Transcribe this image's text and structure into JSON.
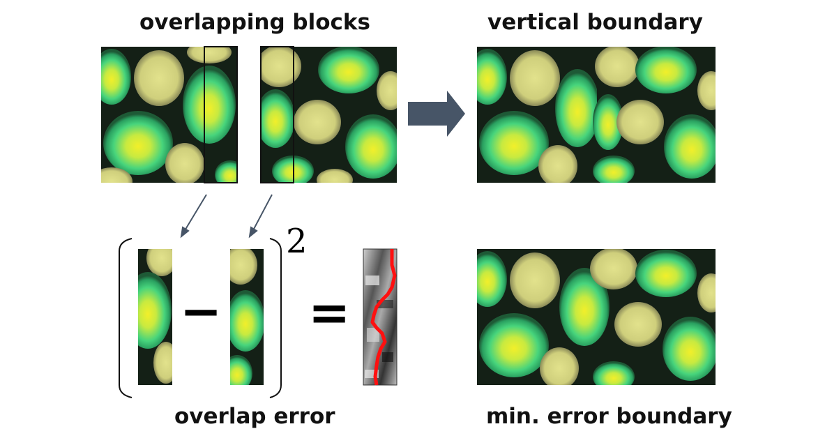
{
  "labels": {
    "overlapping_blocks": "overlapping blocks",
    "vertical_boundary": "vertical boundary",
    "overlap_error": "overlap error",
    "min_error_boundary": "min. error boundary"
  },
  "equation": {
    "minus": "−",
    "equals": "=",
    "exponent": "2"
  },
  "colors": {
    "texture_dark": "#142016",
    "texture_cream": "#dada86",
    "texture_green": "#41d67e",
    "texture_yellow": "#f2ef2a",
    "arrow": "#475567",
    "cut_path": "#ff1010"
  }
}
